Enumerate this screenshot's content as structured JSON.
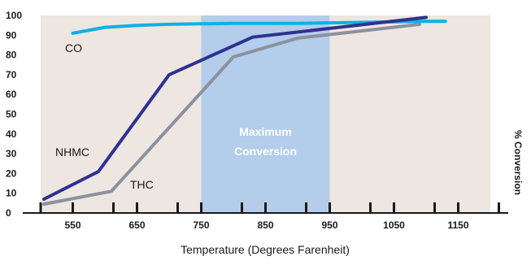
{
  "chart_data": {
    "type": "line",
    "title": "",
    "xlabel": "Temperature (Degrees Farenheit)",
    "ylabel": "% Conversion",
    "xlim": [
      500,
      1200
    ],
    "ylim": [
      0,
      100
    ],
    "x_ticks": [
      550,
      650,
      750,
      850,
      950,
      1050,
      1150
    ],
    "y_ticks": [
      0,
      10,
      20,
      30,
      40,
      50,
      60,
      70,
      80,
      90,
      100
    ],
    "grid": false,
    "highlight_band": {
      "x_range": [
        750,
        950
      ],
      "label_line1": "Maximum",
      "label_line2": "Conversion",
      "color": "#b3cdeb"
    },
    "series": [
      {
        "name": "CO",
        "color": "#10b0e4",
        "points": [
          [
            550,
            91
          ],
          [
            600,
            94
          ],
          [
            650,
            95
          ],
          [
            700,
            95.5
          ],
          [
            800,
            96
          ],
          [
            900,
            96
          ],
          [
            1000,
            96.5
          ],
          [
            1100,
            97
          ],
          [
            1130,
            97
          ]
        ]
      },
      {
        "name": "NHMC",
        "color": "#2e3192",
        "points": [
          [
            505,
            7
          ],
          [
            590,
            21
          ],
          [
            700,
            70
          ],
          [
            830,
            89
          ],
          [
            1100,
            99
          ]
        ]
      },
      {
        "name": "THC",
        "color": "#8c919e",
        "points": [
          [
            505,
            4.5
          ],
          [
            610,
            11
          ],
          [
            800,
            79
          ],
          [
            900,
            88.5
          ],
          [
            1090,
            95.5
          ]
        ]
      }
    ],
    "plot_background": "#ede6e1"
  }
}
